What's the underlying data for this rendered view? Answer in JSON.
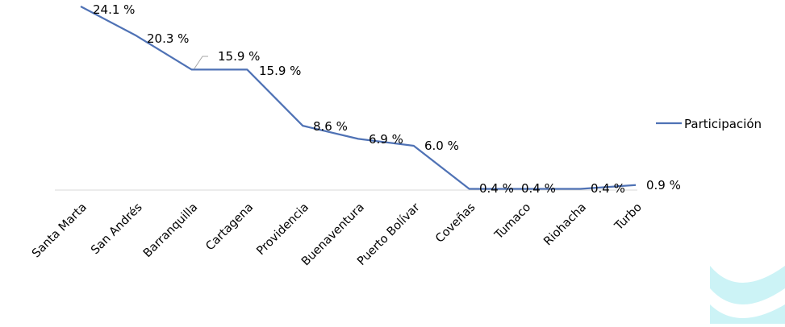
{
  "chart_data": {
    "type": "line",
    "categories": [
      "Santa Marta",
      "San Andrés",
      "Barranquilla",
      "Cartagena",
      "Providencia",
      "Buenaventura",
      "Puerto Bolívar",
      "Coveñas",
      "Tumaco",
      "Riohacha",
      "Turbo"
    ],
    "series": [
      {
        "name": "Participación",
        "values": [
          24.1,
          20.3,
          15.9,
          15.9,
          8.6,
          6.9,
          6.0,
          0.4,
          0.4,
          0.4,
          0.9
        ],
        "labels": [
          "24.1 %",
          "20.3 %",
          "15.9 %",
          "15.9 %",
          "8.6 %",
          "6.9 %",
          "6.0 %",
          "0.4 %",
          "0.4 %",
          "0.4 %",
          "0.9 %"
        ]
      }
    ],
    "ylim": [
      0,
      24.1
    ],
    "legend_position": "right",
    "grid": false
  },
  "colors": {
    "series_line": "#4f72b5",
    "axis_line": "#d9d9d9",
    "text": "#000000",
    "decor_wave": "#ccf3f6"
  }
}
